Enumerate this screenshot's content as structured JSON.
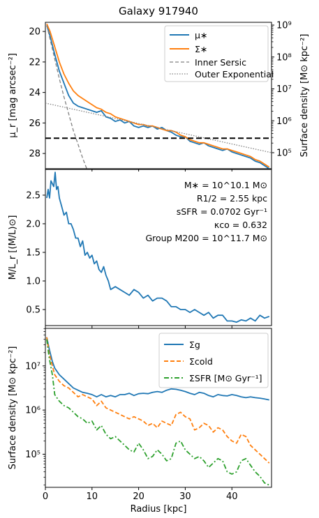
{
  "chart_data": [
    {
      "type": "line",
      "title": "Galaxy 917940",
      "xlabel": "",
      "ylabel": "μ_r [mag arcsec⁻²]",
      "ylabel_right": "Surface density [M⊙ kpc⁻²]",
      "xlim": [
        0,
        48.5
      ],
      "ylim": [
        29.0,
        19.4
      ],
      "y_inverted": true,
      "y2_scale": "log",
      "y2_ticks": [
        "10⁵",
        "10⁶",
        "10⁷",
        "10⁸",
        "10⁹"
      ],
      "hline": 27.0,
      "legend_position": "top-right",
      "series": [
        {
          "name": "μ∗",
          "color": "#1f77b4",
          "style": "solid",
          "x": [
            0.3,
            1,
            2,
            3,
            4,
            5,
            6,
            7,
            8,
            9,
            10,
            11,
            12,
            13,
            14,
            15,
            16,
            17,
            18,
            19,
            20,
            21,
            22,
            23,
            24,
            25,
            26,
            27,
            28,
            29,
            30,
            31,
            32,
            33,
            34,
            35,
            36,
            37,
            38,
            39,
            40,
            41,
            42,
            43,
            44,
            45,
            46,
            47,
            48
          ],
          "y": [
            19.6,
            20.3,
            21.5,
            22.6,
            23.4,
            24.2,
            24.7,
            24.9,
            25.0,
            25.1,
            25.2,
            25.3,
            25.2,
            25.6,
            25.7,
            25.9,
            25.8,
            26.0,
            25.9,
            26.2,
            26.3,
            26.2,
            26.3,
            26.2,
            26.4,
            26.3,
            26.5,
            26.6,
            26.8,
            26.9,
            26.9,
            27.2,
            27.3,
            27.4,
            27.3,
            27.5,
            27.6,
            27.7,
            27.8,
            27.7,
            27.9,
            28.0,
            28.1,
            28.2,
            28.3,
            28.5,
            28.6,
            28.8,
            29.0
          ]
        },
        {
          "name": "Σ∗",
          "color": "#ff7f0e",
          "style": "solid",
          "x": [
            0.3,
            1,
            2,
            3,
            4,
            5,
            6,
            7,
            8,
            9,
            10,
            11,
            12,
            13,
            14,
            15,
            16,
            17,
            18,
            19,
            20,
            21,
            22,
            23,
            24,
            25,
            26,
            27,
            28,
            29,
            30,
            31,
            32,
            33,
            34,
            35,
            36,
            37,
            38,
            39,
            40,
            41,
            42,
            43,
            44,
            45,
            46,
            47,
            48
          ],
          "y": [
            19.5,
            20.0,
            21.0,
            22.0,
            22.8,
            23.4,
            23.9,
            24.2,
            24.4,
            24.6,
            24.8,
            25.0,
            25.1,
            25.3,
            25.4,
            25.6,
            25.7,
            25.8,
            25.9,
            26.0,
            26.1,
            26.1,
            26.2,
            26.2,
            26.3,
            26.4,
            26.5,
            26.5,
            26.6,
            26.8,
            26.9,
            27.1,
            27.2,
            27.3,
            27.3,
            27.4,
            27.5,
            27.6,
            27.7,
            27.7,
            27.8,
            27.9,
            28.0,
            28.1,
            28.2,
            28.4,
            28.5,
            28.7,
            28.9
          ]
        },
        {
          "name": "Inner Sersic",
          "color": "#808080",
          "style": "dashed",
          "x": [
            0.3,
            1,
            2,
            3,
            4,
            5,
            6,
            7,
            8,
            9,
            9.6
          ],
          "y": [
            19.6,
            20.5,
            21.8,
            23.1,
            24.3,
            25.4,
            26.5,
            27.4,
            28.3,
            29.1,
            29.6
          ]
        },
        {
          "name": "Outer Exponential",
          "color": "#808080",
          "style": "dotted",
          "x": [
            0,
            48.5
          ],
          "y": [
            24.7,
            27.95
          ]
        }
      ]
    },
    {
      "type": "line",
      "xlabel": "",
      "ylabel": "M/L_r [(M/L)⊙]",
      "xlim": [
        0,
        48.5
      ],
      "ylim": [
        0.22,
        2.95
      ],
      "y_ticks": [
        0.5,
        1.0,
        1.5,
        2.0,
        2.5
      ],
      "annotations": [
        "M∗ = 10^10.1 M⊙",
        "R1/2 = 2.55 kpc",
        "sSFR = 0.0702 Gyr⁻¹",
        "κco = 0.632",
        "Group M200 = 10^11.7 M⊙"
      ],
      "series": [
        {
          "name": "",
          "color": "#1f77b4",
          "style": "solid",
          "x": [
            0.3,
            0.6,
            0.9,
            1.2,
            1.5,
            1.8,
            2.1,
            2.4,
            2.7,
            3.0,
            3.5,
            4.0,
            4.5,
            5.0,
            5.5,
            6.0,
            6.5,
            7.0,
            7.5,
            8.0,
            8.5,
            9.0,
            9.5,
            10,
            10.5,
            11,
            11.5,
            12,
            12.5,
            13,
            13.5,
            14,
            15,
            16,
            17,
            18,
            19,
            20,
            21,
            22,
            23,
            24,
            25,
            26,
            27,
            28,
            29,
            30,
            31,
            32,
            33,
            34,
            35,
            36,
            37,
            38,
            39,
            40,
            41,
            42,
            43,
            44,
            45,
            46,
            47,
            48
          ],
          "y": [
            2.45,
            2.6,
            2.45,
            2.75,
            2.7,
            2.65,
            2.9,
            2.6,
            2.65,
            2.45,
            2.3,
            2.15,
            2.2,
            2.0,
            2.0,
            1.9,
            1.75,
            1.75,
            1.6,
            1.7,
            1.45,
            1.5,
            1.4,
            1.45,
            1.3,
            1.35,
            1.2,
            1.15,
            1.25,
            1.1,
            1.0,
            0.85,
            0.9,
            0.85,
            0.8,
            0.75,
            0.85,
            0.8,
            0.7,
            0.75,
            0.65,
            0.7,
            0.7,
            0.65,
            0.55,
            0.55,
            0.5,
            0.5,
            0.45,
            0.5,
            0.45,
            0.4,
            0.45,
            0.35,
            0.4,
            0.4,
            0.3,
            0.3,
            0.28,
            0.32,
            0.3,
            0.35,
            0.3,
            0.4,
            0.35,
            0.38
          ]
        }
      ]
    },
    {
      "type": "line",
      "xlabel": "Radius [kpc]",
      "ylabel": "Surface density [M⊙ kpc⁻²]",
      "xlim": [
        0,
        48.5
      ],
      "y_scale": "log",
      "y_log_range": [
        4.25,
        7.85
      ],
      "x_ticks": [
        0,
        10,
        20,
        30,
        40
      ],
      "y_ticks": [
        "10⁵",
        "10⁶",
        "10⁷"
      ],
      "legend_position": "top-right",
      "series": [
        {
          "name": "Σg",
          "color": "#1f77b4",
          "style": "solid",
          "x": [
            0.3,
            0.8,
            1.5,
            2,
            3,
            4,
            5,
            6,
            7,
            8,
            9,
            10,
            11,
            12,
            13,
            14,
            15,
            16,
            17,
            18,
            19,
            20,
            21,
            22,
            23,
            24,
            25,
            26,
            27,
            28,
            29,
            30,
            31,
            32,
            33,
            34,
            35,
            36,
            37,
            38,
            39,
            40,
            41,
            42,
            43,
            44,
            45,
            46,
            47,
            48
          ],
          "y": [
            7.65,
            7.4,
            7.1,
            6.95,
            6.8,
            6.7,
            6.6,
            6.5,
            6.45,
            6.4,
            6.38,
            6.35,
            6.3,
            6.35,
            6.3,
            6.33,
            6.3,
            6.35,
            6.35,
            6.38,
            6.33,
            6.37,
            6.38,
            6.37,
            6.4,
            6.42,
            6.4,
            6.45,
            6.48,
            6.47,
            6.45,
            6.42,
            6.38,
            6.35,
            6.4,
            6.38,
            6.33,
            6.3,
            6.35,
            6.33,
            6.32,
            6.35,
            6.33,
            6.3,
            6.28,
            6.3,
            6.28,
            6.27,
            6.25,
            6.23
          ]
        },
        {
          "name": "Σcold",
          "color": "#ff7f0e",
          "style": "dashed",
          "x": [
            0.3,
            0.8,
            1.5,
            2,
            3,
            4,
            5,
            6,
            7,
            8,
            9,
            10,
            11,
            12,
            13,
            14,
            15,
            16,
            17,
            18,
            19,
            20,
            21,
            22,
            23,
            24,
            25,
            26,
            27,
            28,
            29,
            30,
            31,
            32,
            33,
            34,
            35,
            36,
            37,
            38,
            39,
            40,
            41,
            42,
            43,
            44,
            45,
            46,
            47,
            48
          ],
          "y": [
            7.65,
            7.3,
            7.0,
            6.8,
            6.65,
            6.55,
            6.5,
            6.4,
            6.3,
            6.35,
            6.3,
            6.25,
            6.1,
            6.2,
            6.05,
            6.0,
            5.95,
            5.9,
            5.85,
            5.8,
            5.85,
            5.8,
            5.75,
            5.65,
            5.7,
            5.6,
            5.75,
            5.7,
            5.65,
            5.9,
            5.95,
            5.85,
            5.8,
            5.55,
            5.6,
            5.7,
            5.65,
            5.5,
            5.6,
            5.55,
            5.4,
            5.3,
            5.25,
            5.45,
            5.4,
            5.2,
            5.1,
            5.0,
            4.9,
            4.8
          ]
        },
        {
          "name": "ΣSFR [M⊙ Gyr⁻¹]",
          "color": "#2ca02c",
          "style": "dashdot",
          "x": [
            0.3,
            0.8,
            1.5,
            2,
            3,
            4,
            5,
            6,
            7,
            8,
            9,
            10,
            11,
            12,
            13,
            14,
            15,
            16,
            17,
            18,
            19,
            20,
            21,
            22,
            23,
            24,
            25,
            26,
            27,
            28,
            29,
            30,
            31,
            32,
            33,
            34,
            35,
            36,
            37,
            38,
            39,
            40,
            41,
            42,
            43,
            44,
            45,
            46,
            47,
            48
          ],
          "y": [
            7.6,
            7.2,
            6.8,
            6.35,
            6.2,
            6.1,
            6.05,
            5.95,
            5.85,
            5.8,
            5.7,
            5.75,
            5.55,
            5.65,
            5.45,
            5.35,
            5.4,
            5.3,
            5.2,
            5.1,
            5.05,
            5.25,
            5.1,
            4.9,
            4.95,
            5.1,
            5.0,
            4.85,
            4.9,
            5.25,
            5.3,
            5.1,
            5.0,
            4.9,
            4.95,
            4.85,
            4.7,
            4.8,
            4.9,
            4.85,
            4.6,
            4.55,
            4.6,
            4.85,
            4.9,
            4.75,
            4.6,
            4.5,
            4.35,
            4.3
          ]
        }
      ]
    }
  ]
}
